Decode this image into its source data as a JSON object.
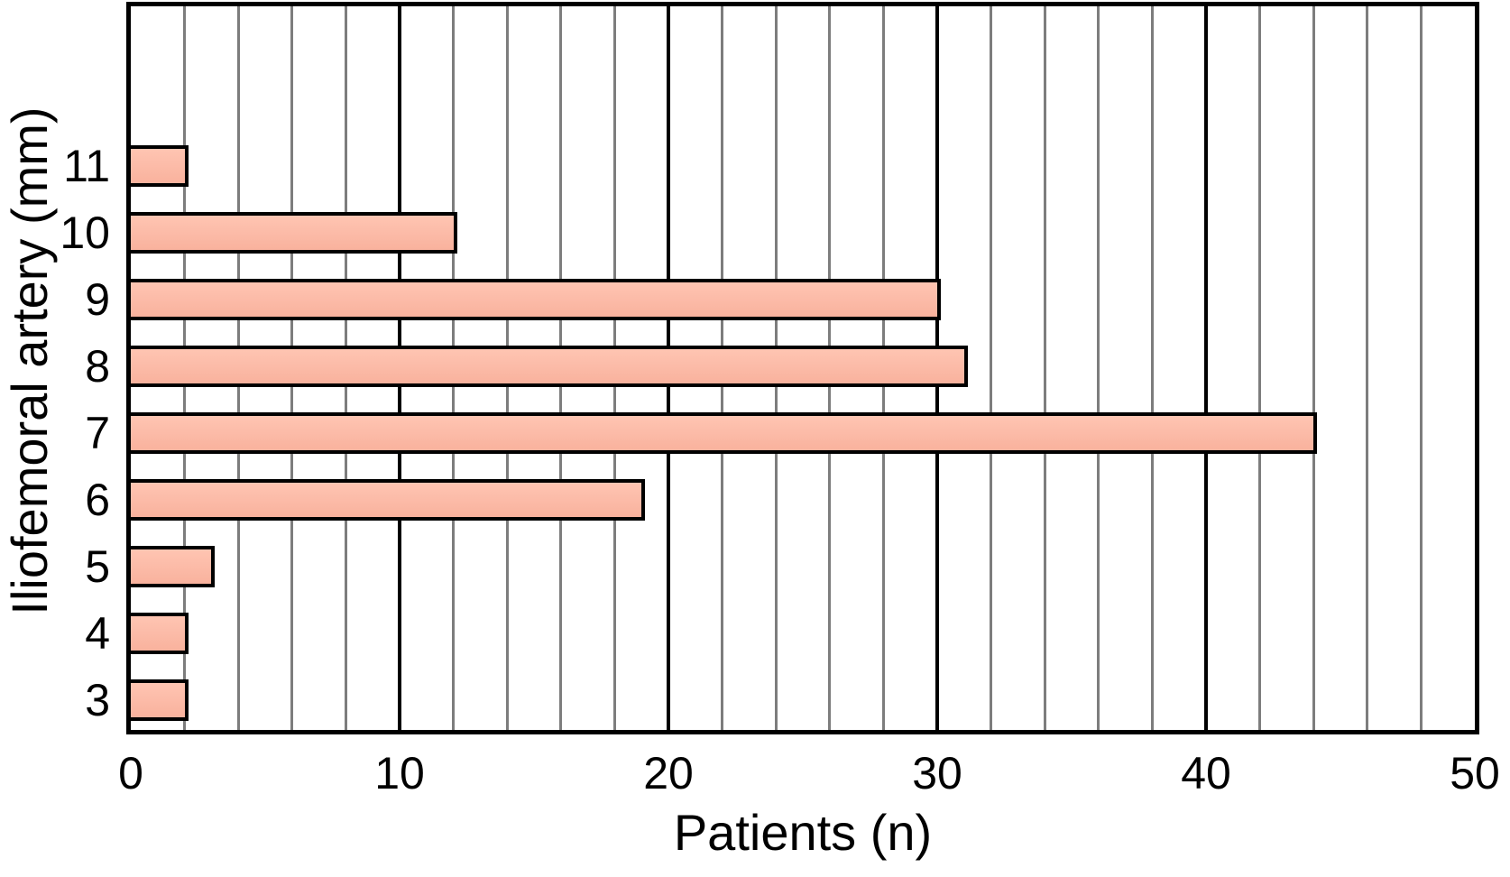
{
  "chart_data": {
    "type": "bar",
    "orientation": "horizontal",
    "title": "",
    "xlabel": "Patients (n)",
    "ylabel": "Iliofemoral artery (mm)",
    "categories": [
      "3",
      "4",
      "5",
      "6",
      "7",
      "8",
      "9",
      "10",
      "11"
    ],
    "values": [
      2,
      2,
      3,
      19,
      44,
      31,
      30,
      12,
      2
    ],
    "series": [
      {
        "name": "Patients",
        "values": [
          2,
          2,
          3,
          19,
          44,
          31,
          30,
          12,
          2
        ]
      }
    ],
    "xlim": [
      0,
      50
    ],
    "x_major_ticks": [
      0,
      10,
      20,
      30,
      40,
      50
    ],
    "x_minor_tick_step": 2,
    "grid": "vertical",
    "legend_position": "none",
    "colors": {
      "bar_fill": "#fcbca9",
      "bar_border": "#000000",
      "grid_minor": "#7d7d7d",
      "grid_major": "#000000",
      "plot_border": "#000000",
      "text": "#000000",
      "background": "#ffffff"
    }
  }
}
